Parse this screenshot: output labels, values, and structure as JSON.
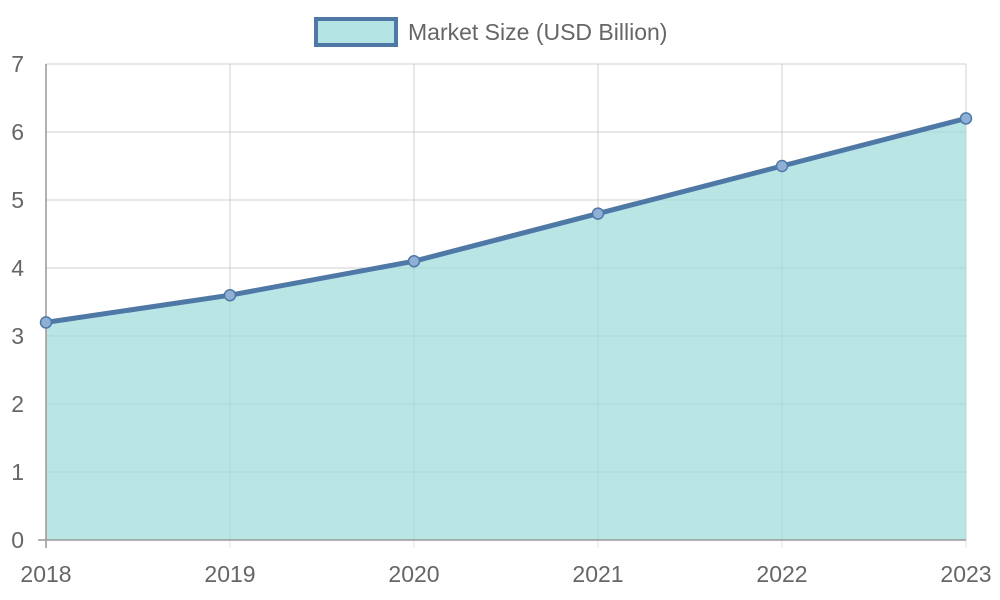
{
  "chart_data": {
    "type": "area",
    "categories": [
      "2018",
      "2019",
      "2020",
      "2021",
      "2022",
      "2023"
    ],
    "series": [
      {
        "name": "Market Size (USD Billion)",
        "values": [
          3.2,
          3.6,
          4.1,
          4.8,
          5.5,
          6.2
        ]
      }
    ],
    "title": "",
    "xlabel": "",
    "ylabel": "",
    "ylim": [
      0,
      7
    ],
    "yticks": [
      "0",
      "1",
      "2",
      "3",
      "4",
      "5",
      "6",
      "7"
    ],
    "grid": true,
    "legend_position": "top-center",
    "colors": {
      "line": "#4e79a7",
      "fill": "#b5e4e4",
      "grid": "#e0e0e0",
      "axis": "#999999",
      "text": "#666666"
    }
  }
}
